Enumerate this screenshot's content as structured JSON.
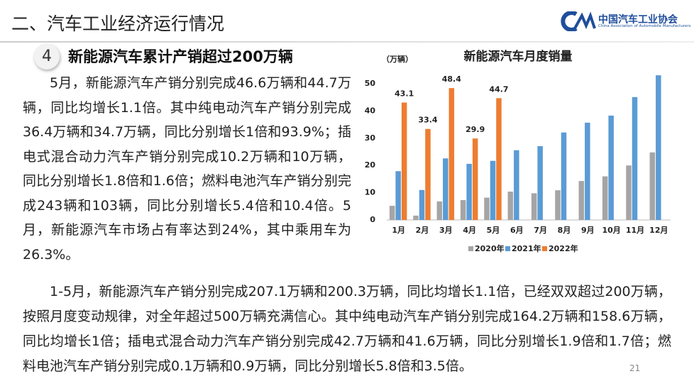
{
  "header": {
    "title": "二、汽车工业经济运行情况",
    "logo_cn": "中国汽车工业协会",
    "logo_en": "China Association of Automobile Manufacturers"
  },
  "section": {
    "number": "4",
    "title": "新能源汽车累计产销超过200万辆"
  },
  "paragraphs": [
    "5月，新能源汽车产销分别完成46.6万辆和44.7万辆，同比均增长1.1倍。其中纯电动汽车产销分别完成36.4万辆和34.7万辆，同比分别增长1倍和93.9%；插电式混合动力汽车产销分别完成10.2万辆和10万辆，同比分别增长1.8倍和1.6倍；燃料电池汽车产销分别完成243辆和103辆，同比分别增长5.4倍和10.4倍。5月，新能源汽车市场占有率达到24%，其中乘用车为26.3%。",
    "1-5月，新能源汽车产销分别完成207.1万辆和200.3万辆，同比均增长1.1倍，已经双双超过200万辆，按照月度变动规律，对全年超过500万辆充满信心。其中纯电动汽车产销分别完成164.2万辆和158.6万辆，同比均增长1倍；插电式混合动力汽车产销分别完成42.7万辆和41.6万辆，同比分别增长1.9倍和1.7倍；燃料电池汽车产销分别完成0.1万辆和0.9万辆，同比分别增长5.8倍和3.5倍。"
  ],
  "page_number": "21",
  "chart_data": {
    "type": "bar",
    "title": "新能源汽车月度销量",
    "y_label": "（万辆）",
    "categories": [
      "1月",
      "2月",
      "3月",
      "4月",
      "5月",
      "6月",
      "7月",
      "8月",
      "9月",
      "10月",
      "11月",
      "12月"
    ],
    "series": [
      {
        "name": "2020年",
        "color": "#a5a5a5",
        "values": [
          5.2,
          1.6,
          6.8,
          7.3,
          8.2,
          10.4,
          9.8,
          10.9,
          14.3,
          16.0,
          20.0,
          24.8
        ]
      },
      {
        "name": "2021年",
        "color": "#5b9bd5",
        "values": [
          17.9,
          11.0,
          22.6,
          20.6,
          21.7,
          25.6,
          27.1,
          32.1,
          35.7,
          38.3,
          45.1,
          53.1
        ]
      },
      {
        "name": "2022年",
        "color": "#ed7d31",
        "values": [
          43.1,
          33.4,
          48.4,
          29.9,
          44.7,
          null,
          null,
          null,
          null,
          null,
          null,
          null
        ],
        "data_labels": true
      }
    ],
    "ylim": [
      0,
      55
    ],
    "yticks": [
      0,
      10,
      20,
      30,
      40,
      50
    ],
    "legend": "bottom"
  }
}
